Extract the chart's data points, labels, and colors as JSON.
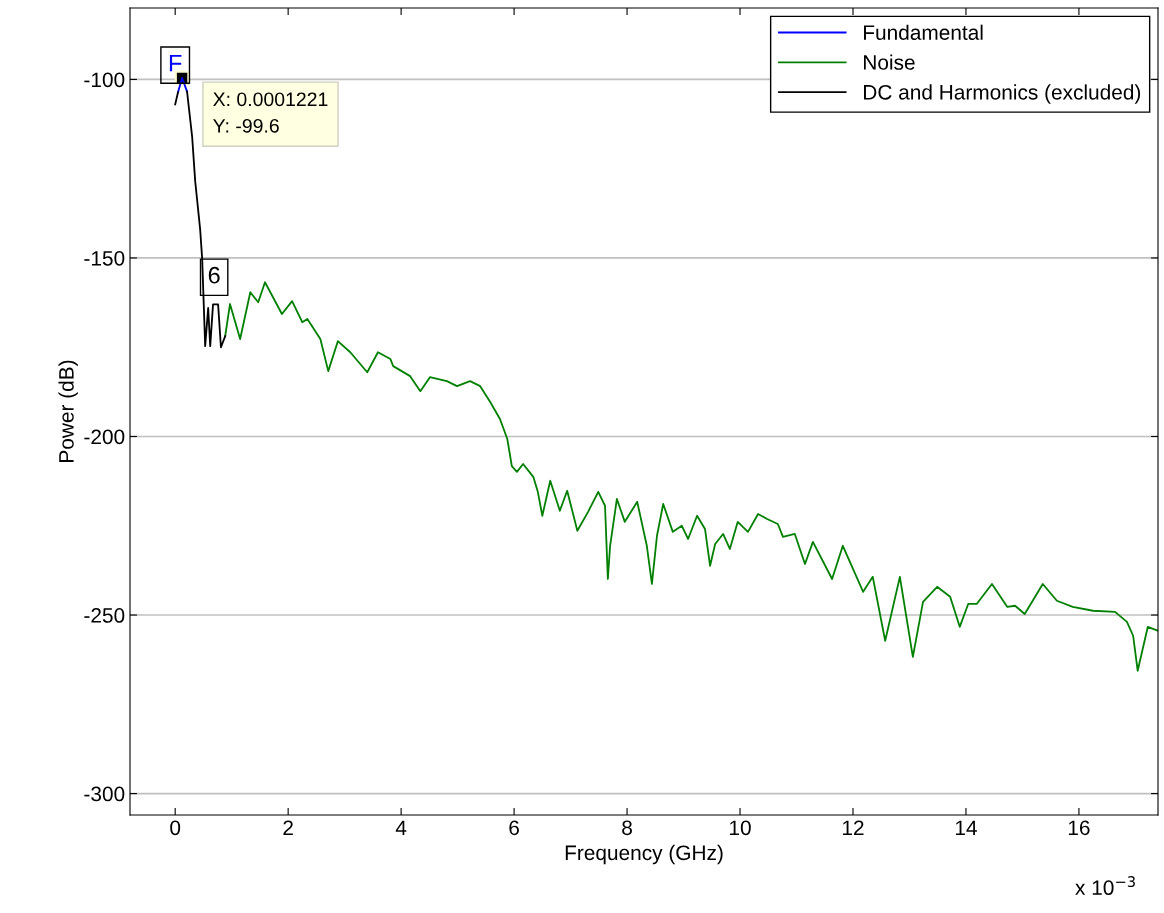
{
  "chart_data": {
    "type": "line",
    "xlabel": "Frequency (GHz)",
    "ylabel": "Power (dB)",
    "xlim": [
      -0.8,
      17.4
    ],
    "ylim": [
      -306,
      -80
    ],
    "xticks": [
      0,
      2,
      4,
      6,
      8,
      10,
      12,
      14,
      16
    ],
    "yticks": [
      -300,
      -250,
      -200,
      -150,
      -100
    ],
    "grid": "y",
    "legend": "top right",
    "line_style": "solid",
    "marker": "none",
    "series": [
      {
        "name": "Fundamental",
        "color": "#0000ff",
        "x": [
          0.05,
          0.1221,
          0.21
        ],
        "values": [
          -103.6,
          -99.6,
          -103.4
        ]
      },
      {
        "name": "Noise",
        "color": "#008000",
        "x": [
          0.885,
          0.97,
          1.15,
          1.33,
          1.47,
          1.59,
          1.89,
          2.07,
          2.25,
          2.34,
          2.57,
          2.71,
          2.88,
          3.1,
          3.4,
          3.59,
          3.81,
          3.86,
          4.16,
          4.34,
          4.51,
          4.81,
          4.99,
          5.22,
          5.4,
          5.58,
          5.75,
          5.88,
          5.96,
          6.05,
          6.16,
          6.34,
          6.42,
          6.5,
          6.64,
          6.81,
          6.94,
          7.12,
          7.31,
          7.49,
          7.61,
          7.66,
          7.7,
          7.82,
          7.96,
          8.18,
          8.35,
          8.44,
          8.53,
          8.64,
          8.81,
          8.97,
          9.08,
          9.24,
          9.38,
          9.47,
          9.56,
          9.7,
          9.82,
          9.96,
          10.14,
          10.32,
          10.48,
          10.67,
          10.76,
          10.97,
          11.15,
          11.29,
          11.63,
          11.82,
          12.18,
          12.35,
          12.57,
          12.83,
          13.06,
          13.24,
          13.49,
          13.72,
          13.89,
          14.04,
          14.19,
          14.46,
          14.73,
          14.87,
          15.04,
          15.36,
          15.61,
          15.89,
          16.25,
          16.64,
          16.85,
          16.96,
          17.04,
          17.22,
          17.4
        ],
        "values": [
          -171.9,
          -162.9,
          -172.7,
          -159.6,
          -162.4,
          -156.8,
          -165.7,
          -162.1,
          -168,
          -167.1,
          -172.7,
          -181.7,
          -173.3,
          -176.4,
          -182,
          -176.4,
          -178.3,
          -180.3,
          -183.1,
          -187.3,
          -183.4,
          -184.5,
          -185.9,
          -184.5,
          -185.9,
          -190.4,
          -195.1,
          -200.7,
          -208.3,
          -209.9,
          -207.7,
          -211.3,
          -215.5,
          -222.2,
          -212.4,
          -220.8,
          -215.2,
          -226.4,
          -221.1,
          -215.5,
          -219.4,
          -239.9,
          -230.6,
          -217.5,
          -223.9,
          -218.3,
          -230.6,
          -241.3,
          -227.8,
          -218.9,
          -226.7,
          -225,
          -228.7,
          -222.2,
          -225.9,
          -236.2,
          -230.1,
          -227.3,
          -231.5,
          -223.9,
          -226.7,
          -221.7,
          -223.1,
          -224.5,
          -228.1,
          -227.3,
          -235.7,
          -229.5,
          -239.9,
          -230.6,
          -243.5,
          -239.3,
          -257.2,
          -239.3,
          -261.7,
          -246.3,
          -242.1,
          -244.9,
          -253.3,
          -246.9,
          -246.9,
          -241.3,
          -247.7,
          -247.4,
          -249.7,
          -241.3,
          -246,
          -247.7,
          -248.8,
          -249.1,
          -251.9,
          -255.8,
          -265.6,
          -253.3,
          -254.4
        ]
      },
      {
        "name": "DC and Harmonics (excluded)",
        "color": "#000000",
        "x": [
          0,
          0.05,
          0.12,
          0.21,
          0.3,
          0.354,
          0.442,
          0.478,
          0.531,
          0.584,
          0.62,
          0.67,
          0.76,
          0.81,
          0.885
        ],
        "values": [
          -107,
          -103.6,
          null,
          -103.4,
          -116,
          -128.5,
          -142,
          -150.3,
          -174.7,
          -164,
          -174.7,
          -163,
          -163,
          -175,
          -171.9
        ]
      }
    ],
    "annotations": [
      {
        "text": "X: 0.0001221\nY: -99.6",
        "x": 0.1221,
        "y": -99.6
      },
      {
        "text": "F",
        "x": 0,
        "y": -96
      },
      {
        "text": "6",
        "x": 0.69,
        "y": -155.4
      },
      "x 10$^{−3}$"
    ]
  }
}
